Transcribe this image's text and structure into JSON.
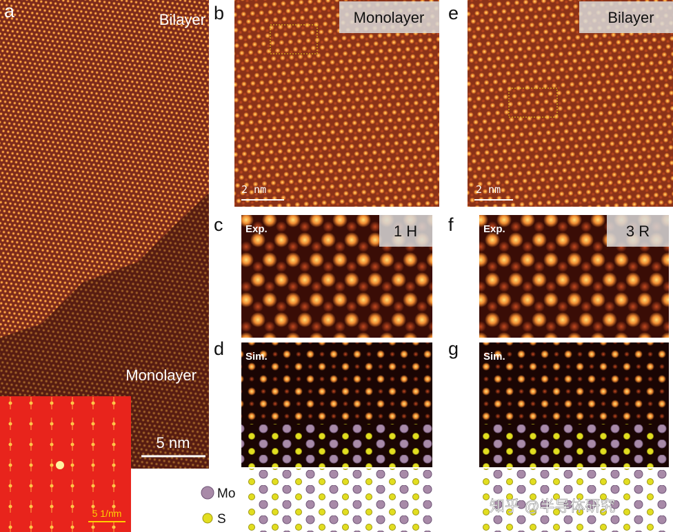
{
  "panels": {
    "a": {
      "label": "a",
      "top_label": "Bilayer",
      "bottom_label": "Monolayer",
      "scale_bar": "5 nm",
      "inset_scale_bar": "5 1/nm"
    },
    "b": {
      "label": "b",
      "tag": "Monolayer",
      "scale_bar": "2 nm"
    },
    "c": {
      "label": "c",
      "corner": "Exp.",
      "tag": "1 H"
    },
    "d": {
      "label": "d",
      "corner": "Sim."
    },
    "e": {
      "label": "e",
      "tag": "Bilayer",
      "scale_bar": "2 nm"
    },
    "f": {
      "label": "f",
      "corner": "Exp.",
      "tag": "3 R"
    },
    "g": {
      "label": "g",
      "corner": "Sim."
    }
  },
  "legend": {
    "items": [
      {
        "label": "Mo"
      },
      {
        "label": "S"
      }
    ]
  },
  "watermark": "知乎 @半导体研究"
}
